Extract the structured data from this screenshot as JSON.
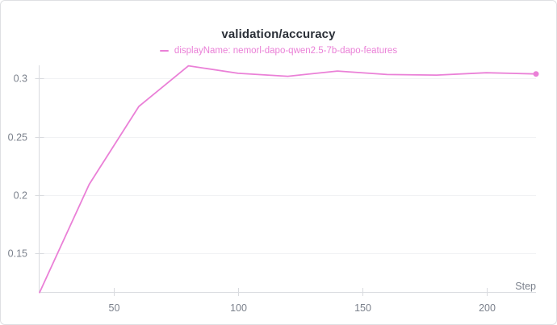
{
  "panel": {
    "title": "validation/accuracy",
    "legend": {
      "items": [
        {
          "label": "displayName: nemorl-dapo-qwen2.5-7b-dapo-features",
          "color": "#EA80D7"
        }
      ]
    }
  },
  "colors": {
    "series_line": "#EA80D7",
    "title_text": "#2B3038",
    "tick_label_text": "#7B818C",
    "axis_line": "#D9DBDF",
    "tick_line": "#D9DBDF",
    "grid_line": "#F1F2F4",
    "card_border": "#DFE0E3",
    "background": "#FFFFFF"
  },
  "chart_data": {
    "type": "line",
    "title": "validation/accuracy",
    "xlabel": "Step",
    "ylabel": "",
    "x": [
      20,
      40,
      60,
      80,
      100,
      120,
      140,
      160,
      180,
      200,
      220
    ],
    "series": [
      {
        "name": "displayName: nemorl-dapo-qwen2.5-7b-dapo-features",
        "color": "#EA80D7",
        "values": [
          0.116,
          0.209,
          0.276,
          0.311,
          0.3045,
          0.302,
          0.3065,
          0.3035,
          0.303,
          0.305,
          0.304
        ]
      }
    ],
    "x_ticks": [
      50,
      100,
      150,
      200
    ],
    "y_ticks": [
      0.15,
      0.2,
      0.25,
      0.3
    ],
    "xlim": [
      20,
      220
    ],
    "ylim": [
      0.1158,
      0.3114
    ],
    "grid": "horizontal-only",
    "legend_position": "top-center",
    "end_marker": true
  }
}
